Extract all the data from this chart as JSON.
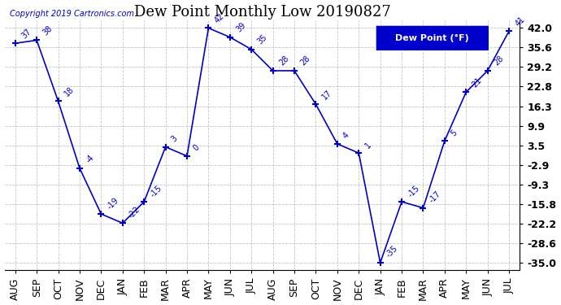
{
  "title": "Dew Point Monthly Low 20190827",
  "copyright": "Copyright 2019 Cartronics.com",
  "legend_label": "Dew Point (°F)",
  "x_labels": [
    "AUG",
    "SEP",
    "OCT",
    "NOV",
    "DEC",
    "JAN",
    "FEB",
    "MAR",
    "APR",
    "MAY",
    "JUN",
    "JUL",
    "AUG",
    "SEP",
    "OCT",
    "NOV",
    "DEC",
    "JAN",
    "FEB",
    "MAR",
    "APR",
    "MAY",
    "JUN",
    "JUL"
  ],
  "x_vals": [
    0,
    1,
    2,
    3,
    4,
    5,
    6,
    7,
    8,
    9,
    10,
    11,
    12,
    13,
    14,
    15,
    16,
    17,
    18,
    19,
    20,
    21,
    22,
    23
  ],
  "y_data": [
    37,
    38,
    18,
    -4,
    -19,
    -22,
    -15,
    3,
    0,
    42,
    39,
    35,
    28,
    28,
    17,
    4,
    1,
    -35,
    -15,
    -17,
    5,
    21,
    28,
    41
  ],
  "y_ticks": [
    42.0,
    35.6,
    29.2,
    22.8,
    16.3,
    9.9,
    3.5,
    -2.9,
    -9.3,
    -15.8,
    -22.2,
    -28.6,
    -35.0
  ],
  "ylim": [
    -37.5,
    44.5
  ],
  "xlim": [
    -0.5,
    23.5
  ],
  "line_color": "#0000cc",
  "marker": "+",
  "marker_size": 6,
  "marker_linewidth": 1.5,
  "linewidth": 1.2,
  "bg_color": "#ffffff",
  "plot_bg_color": "#ffffff",
  "grid_color": "#aaaaaa",
  "legend_bg": "#0000cc",
  "legend_text_color": "#ffffff",
  "title_fontsize": 13,
  "label_fontsize": 7,
  "tick_fontsize": 9,
  "copyright_fontsize": 7,
  "ytick_fontsize": 9,
  "ytick_fontweight": "bold"
}
